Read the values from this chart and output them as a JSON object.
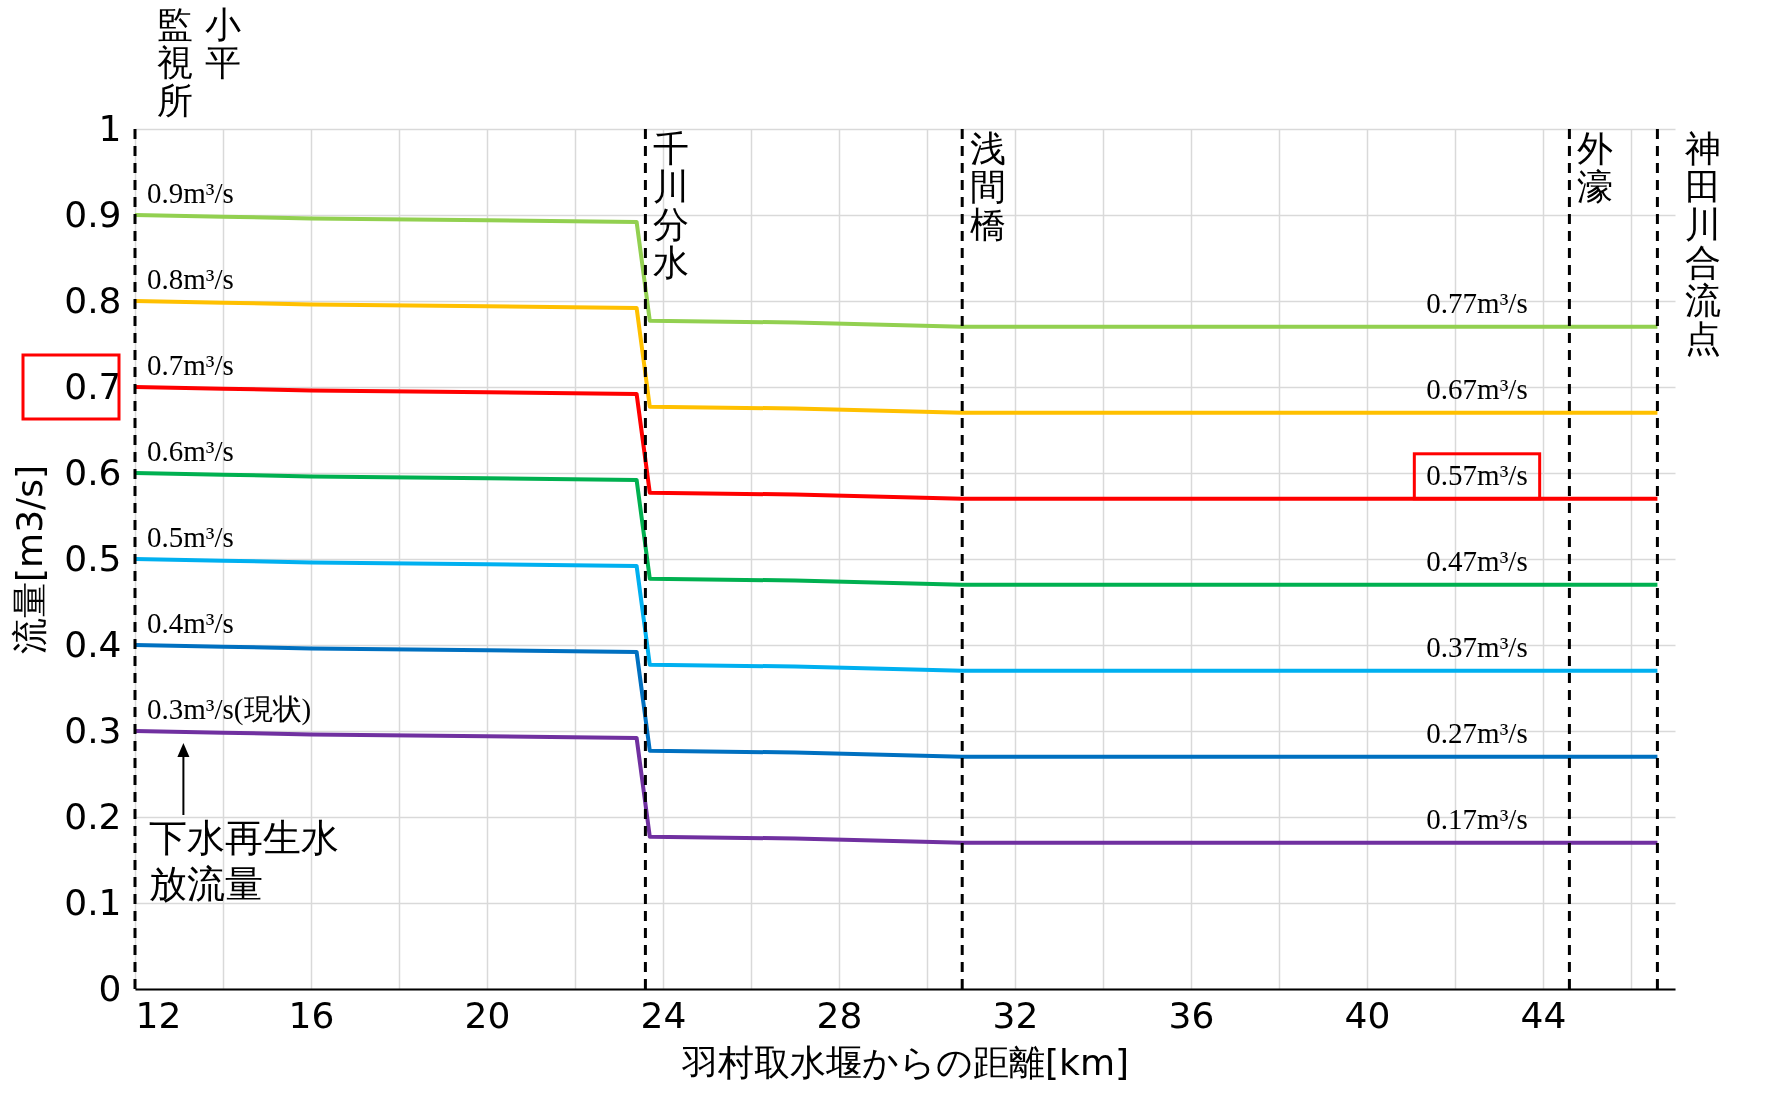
{
  "chart_data": {
    "type": "line",
    "xlabel": "羽村取水堰からの距離[km]",
    "ylabel": "流量[m3/s]",
    "x": [
      12,
      14,
      16,
      20,
      23.4,
      23.7,
      27,
      30.8,
      42.5,
      46.6
    ],
    "series": [
      {
        "color": "#92d050",
        "values": [
          0.9,
          0.898,
          0.896,
          0.894,
          0.892,
          0.777,
          0.775,
          0.77,
          0.77,
          0.77
        ],
        "value_labels": [
          "0.9m³/s",
          null,
          null,
          null,
          null,
          null,
          null,
          null,
          "0.77m³/s",
          null
        ]
      },
      {
        "color": "#ffc000",
        "values": [
          0.8,
          0.798,
          0.796,
          0.794,
          0.792,
          0.677,
          0.675,
          0.67,
          0.67,
          0.67
        ],
        "value_labels": [
          "0.8m³/s",
          null,
          null,
          null,
          null,
          null,
          null,
          null,
          "0.67m³/s",
          null
        ]
      },
      {
        "color": "#ff0000",
        "values": [
          0.7,
          0.698,
          0.696,
          0.694,
          0.692,
          0.577,
          0.575,
          0.57,
          0.57,
          0.57
        ],
        "value_labels": [
          "0.7m³/s",
          null,
          null,
          null,
          null,
          null,
          null,
          null,
          "0.57m³/s",
          null
        ]
      },
      {
        "color": "#00b050",
        "values": [
          0.6,
          0.598,
          0.596,
          0.594,
          0.592,
          0.477,
          0.475,
          0.47,
          0.47,
          0.47
        ],
        "value_labels": [
          "0.6m³/s",
          null,
          null,
          null,
          null,
          null,
          null,
          null,
          "0.47m³/s",
          null
        ]
      },
      {
        "color": "#00b0f0",
        "values": [
          0.5,
          0.498,
          0.496,
          0.494,
          0.492,
          0.377,
          0.375,
          0.37,
          0.37,
          0.37
        ],
        "value_labels": [
          "0.5m³/s",
          null,
          null,
          null,
          null,
          null,
          null,
          null,
          "0.37m³/s",
          null
        ]
      },
      {
        "color": "#0070c0",
        "values": [
          0.4,
          0.398,
          0.396,
          0.394,
          0.392,
          0.277,
          0.275,
          0.27,
          0.27,
          0.27
        ],
        "value_labels": [
          "0.4m³/s",
          null,
          null,
          null,
          null,
          null,
          null,
          null,
          "0.27m³/s",
          null
        ]
      },
      {
        "color": "#7030a0",
        "values": [
          0.3,
          0.298,
          0.296,
          0.294,
          0.292,
          0.177,
          0.175,
          0.17,
          0.17,
          0.17
        ],
        "value_labels": [
          "0.3m³/s(現状)",
          null,
          null,
          null,
          null,
          null,
          null,
          null,
          "0.17m³/s",
          null
        ]
      }
    ],
    "xlim": [
      12,
      47
    ],
    "xticks": [
      12,
      {
        "value": 14,
        "label": null
      },
      16,
      {
        "value": 18,
        "label": null
      },
      20,
      {
        "value": 22,
        "label": null
      },
      24,
      {
        "value": 26,
        "label": null
      },
      28,
      {
        "value": 30,
        "label": null
      },
      32,
      {
        "value": 34,
        "label": null
      },
      36,
      {
        "value": 38,
        "label": null
      },
      40,
      {
        "value": 42,
        "label": null
      },
      44,
      {
        "value": 46,
        "label": null
      }
    ],
    "ylim": [
      0,
      1
    ],
    "yticks": [
      0,
      0.1,
      0.2,
      0.3,
      0.4,
      0.5,
      0.6,
      0.7,
      0.8,
      0.9,
      1
    ],
    "ref_lines": [
      {
        "axis": "x",
        "value": 12,
        "label": "小平監視所",
        "color": "#000000",
        "line_style": "dashed"
      },
      {
        "axis": "x",
        "value": 23.6,
        "label": "千川分水",
        "color": "#000000",
        "line_style": "dashed"
      },
      {
        "axis": "x",
        "value": 30.8,
        "label": "浅間橋",
        "color": "#000000",
        "line_style": "dashed"
      },
      {
        "axis": "x",
        "value": 44.6,
        "label": "外濠",
        "color": "#000000",
        "line_style": "dashed"
      },
      {
        "axis": "x",
        "value": 46.6,
        "label": "神田川合流点",
        "color": "#000000",
        "line_style": "dashed"
      }
    ],
    "annotations": [
      {
        "text": "下水再生水放流量",
        "x": 13.1,
        "y": 0.3
      }
    ],
    "grid": true,
    "legend": false,
    "marker": "none",
    "line_style": "solid"
  }
}
